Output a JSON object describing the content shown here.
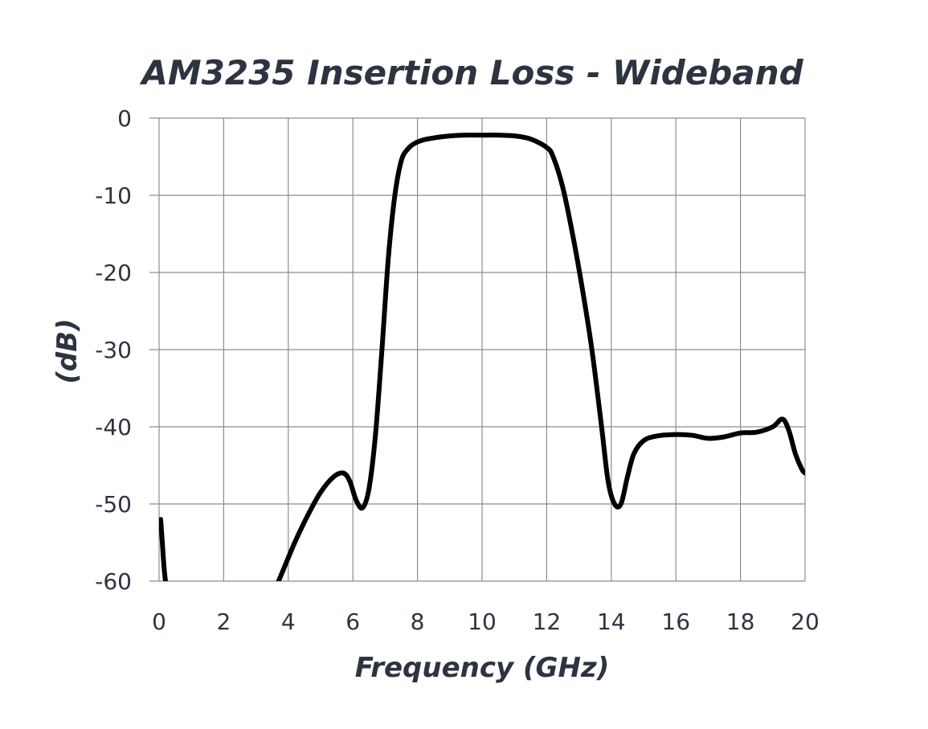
{
  "chart_data": {
    "type": "line",
    "title": "AM3235 Insertion Loss - Wideband",
    "xlabel": "Frequency (GHz)",
    "ylabel": "(dB)",
    "xlim": [
      0,
      20
    ],
    "ylim": [
      -60,
      0
    ],
    "xticks": [
      0,
      2,
      4,
      6,
      8,
      10,
      12,
      14,
      16,
      18,
      20
    ],
    "yticks": [
      0,
      -10,
      -20,
      -30,
      -40,
      -50,
      -60
    ],
    "grid": true,
    "line_color": "#000000",
    "series": [
      {
        "name": "",
        "x": [
          0.05,
          0.1,
          0.15,
          0.2,
          0.3
        ],
        "y": [
          -52,
          -55,
          -58,
          -60,
          -62
        ]
      },
      {
        "name": "",
        "x": [
          3.5,
          3.8,
          4.2,
          4.6,
          5.0,
          5.4,
          5.7,
          5.9,
          6.1,
          6.3,
          6.5,
          6.7,
          6.9,
          7.1,
          7.3,
          7.5,
          7.7,
          7.9,
          8.2,
          8.6,
          9.0,
          9.5,
          10.0,
          10.5,
          11.0,
          11.5,
          12.0,
          12.2,
          12.5,
          12.8,
          13.1,
          13.4,
          13.7,
          13.9,
          14.1,
          14.3,
          14.5,
          14.7,
          15.0,
          15.4,
          16.0,
          16.5,
          17.0,
          17.5,
          18.0,
          18.5,
          19.0,
          19.3,
          19.5,
          19.7,
          19.9,
          20.0
        ],
        "y": [
          -62,
          -59,
          -55,
          -51.5,
          -48.5,
          -46.5,
          -46,
          -47,
          -49.5,
          -50.5,
          -48,
          -41,
          -30,
          -18,
          -10,
          -5.5,
          -4,
          -3.3,
          -2.8,
          -2.5,
          -2.3,
          -2.2,
          -2.2,
          -2.2,
          -2.3,
          -2.7,
          -3.8,
          -5,
          -9,
          -15,
          -22,
          -30,
          -40,
          -47,
          -50,
          -50,
          -46.5,
          -43.5,
          -41.8,
          -41.2,
          -41,
          -41.1,
          -41.5,
          -41.3,
          -40.8,
          -40.7,
          -40,
          -39,
          -40.5,
          -43.5,
          -45.5,
          -46
        ]
      }
    ]
  }
}
